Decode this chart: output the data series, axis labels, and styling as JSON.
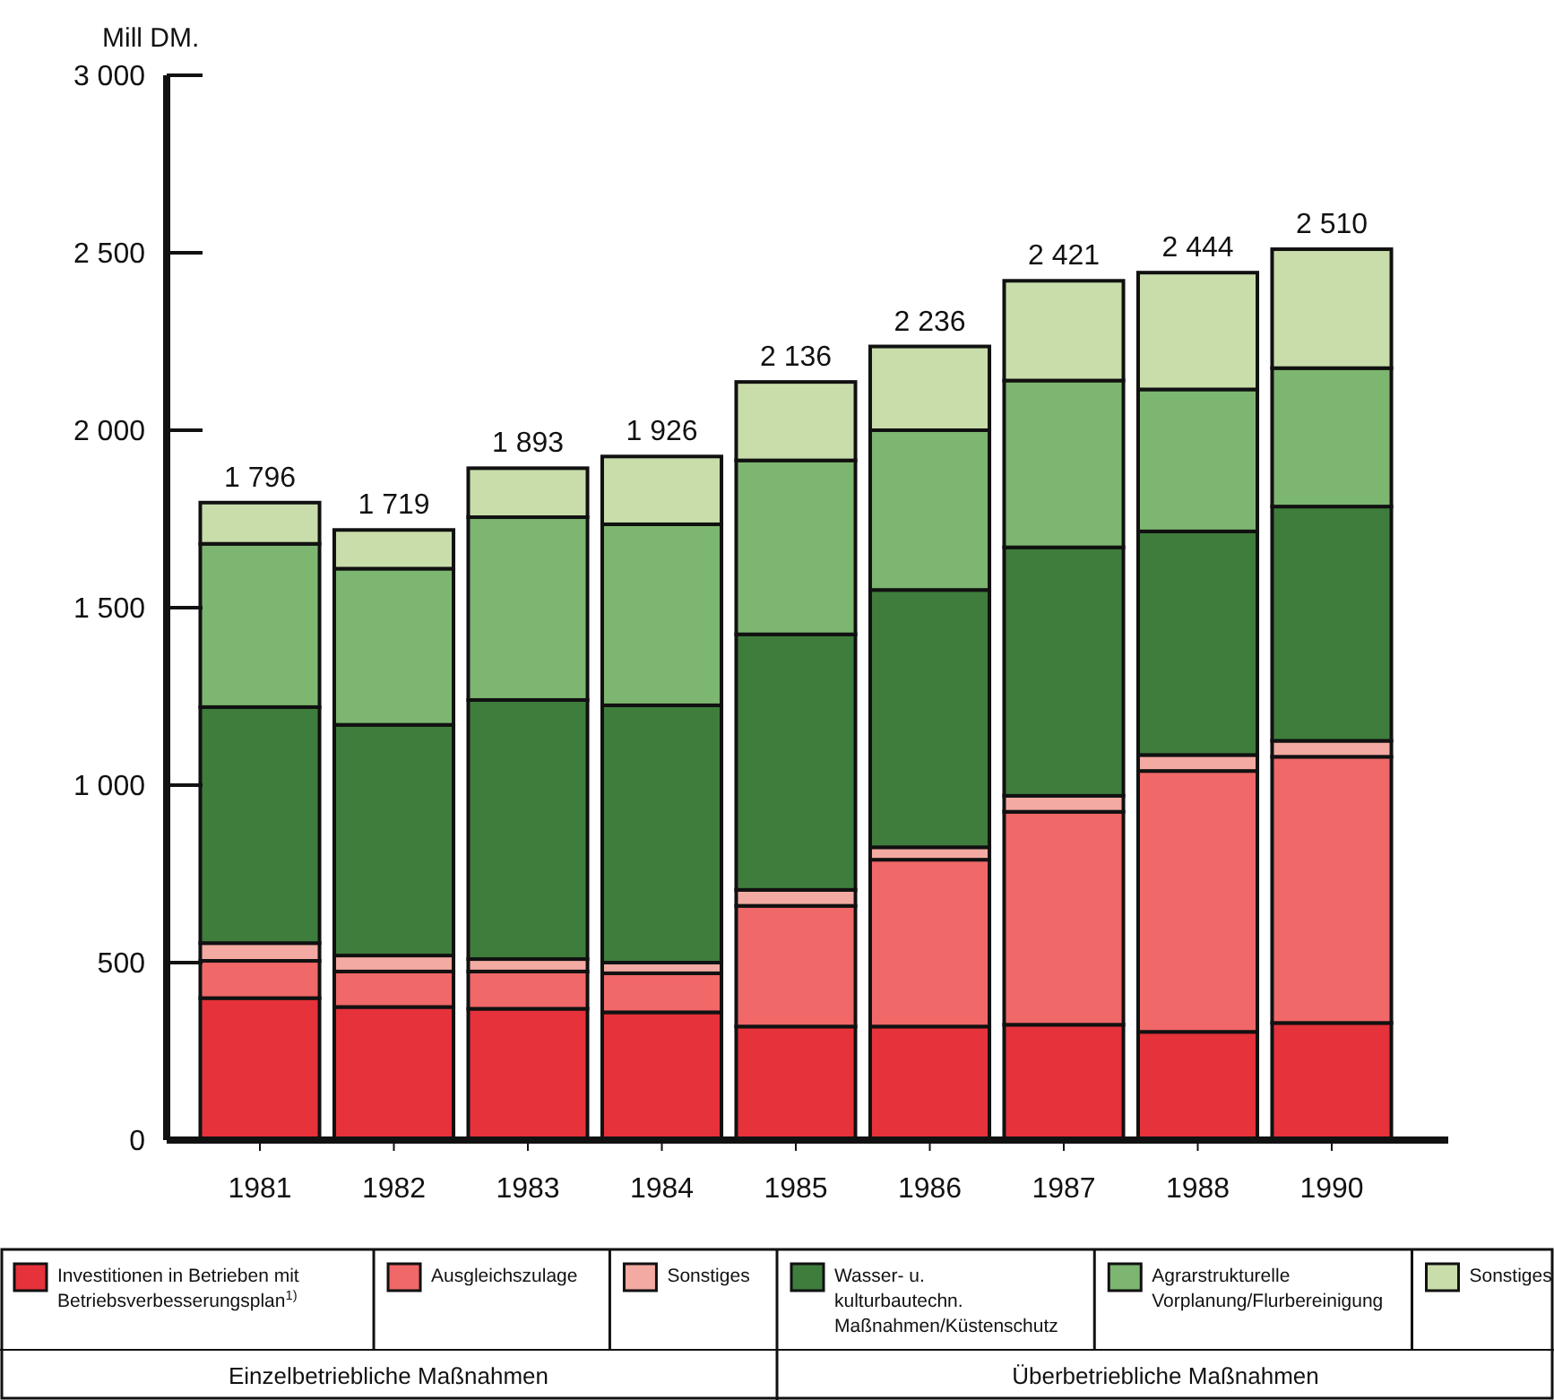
{
  "chart_data": {
    "type": "bar",
    "stacked": true,
    "ylabel": "Mill DM.",
    "categories": [
      "1981",
      "1982",
      "1983",
      "1984",
      "1985",
      "1986",
      "1987",
      "1988",
      "1990"
    ],
    "series": [
      {
        "name": "Investitionen in Betrieben mit Betriebsverbesserungsplan$^{1)}$",
        "color": "#e6323a",
        "values": [
          400,
          375,
          370,
          360,
          320,
          320,
          325,
          305,
          330
        ]
      },
      {
        "name": "Ausgleichszulage",
        "color": "#f06868",
        "values": [
          105,
          100,
          105,
          110,
          340,
          470,
          600,
          735,
          750
        ]
      },
      {
        "name": "Sonstiges",
        "color": "#f3aaa2",
        "values": [
          50,
          45,
          35,
          30,
          45,
          35,
          45,
          45,
          45
        ]
      },
      {
        "name": "Wasser- u. kulturbautechn. Maßnahmen/Küstenschutz",
        "color": "#3f7d3c",
        "values": [
          665,
          650,
          730,
          725,
          720,
          725,
          700,
          630,
          660
        ]
      },
      {
        "name": "Agrarstrukturelle Vorplanung/Flurbereinigung",
        "color": "#7db670",
        "values": [
          460,
          440,
          515,
          510,
          490,
          450,
          470,
          400,
          390
        ]
      },
      {
        "name": "Sonstiges",
        "color": "#c9ddaa",
        "values": [
          116,
          109,
          138,
          191,
          221,
          236,
          281,
          329,
          335
        ]
      }
    ],
    "totals": [
      "1 796",
      "1 719",
      "1 893",
      "1 926",
      "2 136",
      "2 236",
      "2 421",
      "2 444",
      "2 510"
    ],
    "ylim": [
      0,
      3000
    ],
    "yticks": [
      0,
      500,
      {
        "value": 1000,
        "label": "1 000"
      },
      {
        "value": 1500,
        "label": "1 500"
      },
      {
        "value": 2000,
        "label": "2 000"
      },
      {
        "value": 2500,
        "label": "2 500"
      },
      {
        "value": 3000,
        "label": "3 000"
      }
    ],
    "legend": "bottom",
    "annotations": [
      "Einzelbetriebliche Maßnahmen",
      "Überbetriebliche Maßnahmen"
    ]
  }
}
